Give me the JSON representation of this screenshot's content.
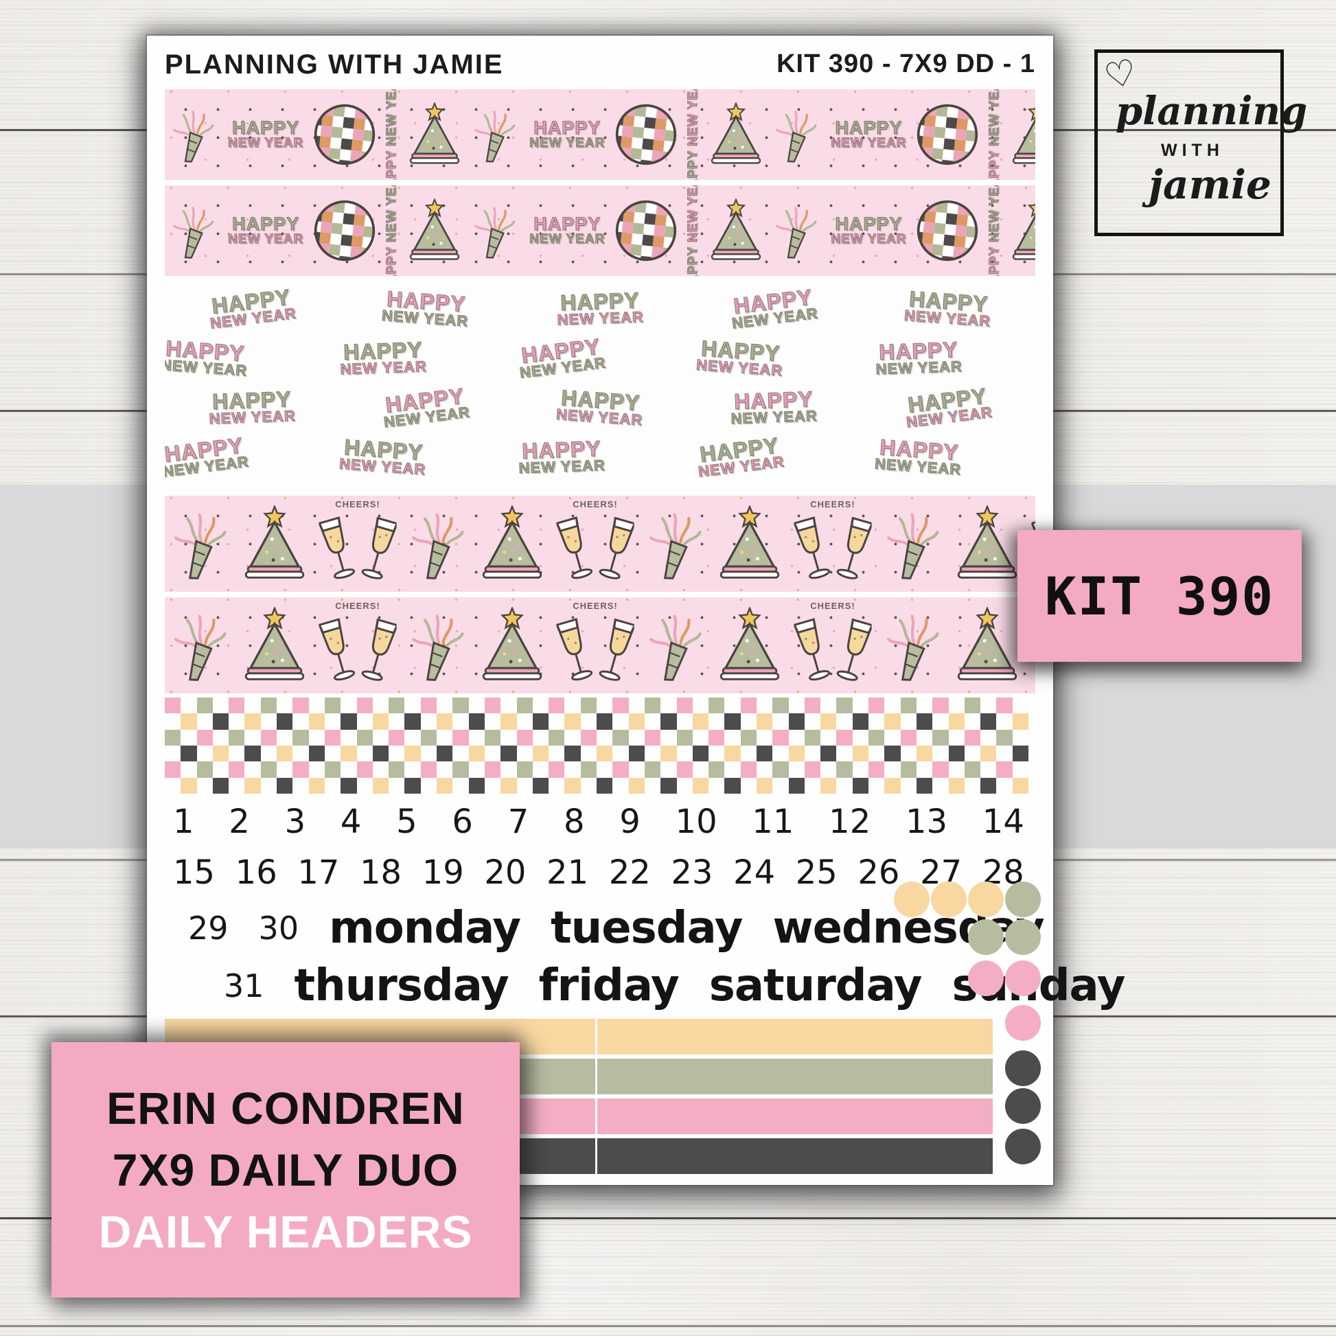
{
  "logo": {
    "heart_icon": "♡",
    "line1": "planning",
    "line2": "WITH",
    "line3": "jamie"
  },
  "kit_badge": {
    "text": "KIT 390"
  },
  "product_badge": {
    "line1": "ERIN CONDREN",
    "line2": "7X9 DAILY DUO",
    "line3": "DAILY HEADERS"
  },
  "sheet": {
    "brand": "PLANNING WITH JAMIE",
    "kit_code": "KIT 390 - 7X9 DD - 1",
    "washi_text": {
      "happy": "HAPPY",
      "new_year": "NEW YEAR",
      "cheers": "CHEERS!"
    },
    "dates_row1": [
      "1",
      "2",
      "3",
      "4",
      "5",
      "6",
      "7",
      "8",
      "9",
      "10",
      "11",
      "12",
      "13",
      "14"
    ],
    "dates_row2": [
      "15",
      "16",
      "17",
      "18",
      "19",
      "20",
      "21",
      "22",
      "23",
      "24",
      "25",
      "26",
      "27",
      "28"
    ],
    "row3_nums": [
      "29",
      "30"
    ],
    "row3_days": [
      "monday",
      "tuesday",
      "wednesday"
    ],
    "row4_nums": [
      "31"
    ],
    "row4_days": [
      "thursday",
      "friday",
      "saturday",
      "sunday"
    ],
    "palette": {
      "pink": "#f4aec3",
      "sage": "#b6bc9f",
      "peach": "#f8d7a0",
      "dark": "#4c4b4d",
      "white": "#fdfdfd",
      "washi_pink_bg": "#fadce8",
      "text_pink": "#e89cb3",
      "text_green": "#a8ae8d"
    },
    "checker": {
      "rows": 6,
      "cols": 54
    },
    "hny_grid": {
      "rows": 4,
      "cols": 5
    },
    "dot_matrix": [
      {
        "row": 0,
        "col": 0,
        "color": "peach"
      },
      {
        "row": 0,
        "col": 1,
        "color": "peach"
      },
      {
        "row": 0,
        "col": 2,
        "color": "peach"
      },
      {
        "row": 0,
        "col": 3,
        "color": "sage"
      },
      {
        "row": 1,
        "col": 2,
        "color": "sage"
      },
      {
        "row": 1,
        "col": 3,
        "color": "sage"
      },
      {
        "row": 2,
        "col": 2,
        "color": "pink"
      },
      {
        "row": 2,
        "col": 3,
        "color": "pink"
      },
      {
        "row": 3,
        "col": 3,
        "color": "pink"
      },
      {
        "row": 4,
        "col": 3,
        "color": "dark"
      },
      {
        "row": 5,
        "col": 3,
        "color": "dark"
      },
      {
        "row": 6,
        "col": 3,
        "color": "dark"
      }
    ],
    "header_strips": [
      "peach",
      "sage",
      "pink",
      "dark"
    ]
  }
}
